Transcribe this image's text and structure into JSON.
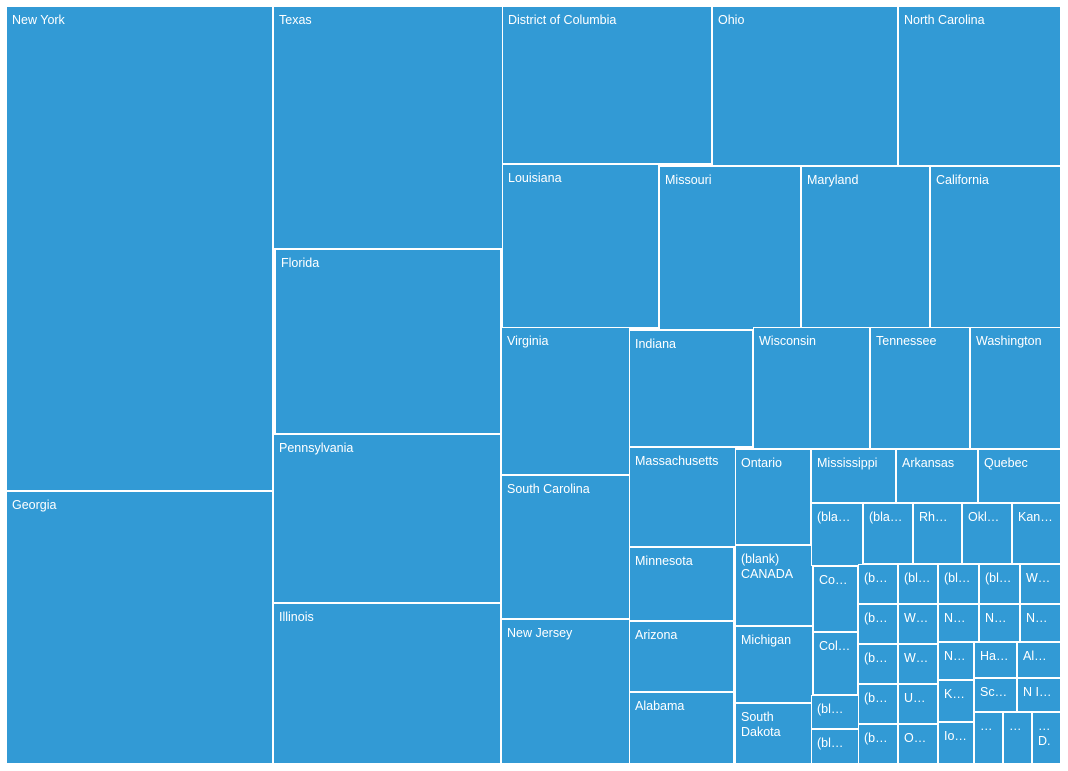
{
  "chart_data": {
    "type": "treemap",
    "color": "#329ad5",
    "label_color": "#ffffff",
    "items": [
      {
        "label": "New York",
        "approx_value": 128
      },
      {
        "label": "Georgia",
        "approx_value": 73
      },
      {
        "label": "Texas",
        "approx_value": 55
      },
      {
        "label": "Florida",
        "approx_value": 41
      },
      {
        "label": "Pennsylvania",
        "approx_value": 38
      },
      {
        "label": "Illinois",
        "approx_value": 36
      },
      {
        "label": "District of Columbia",
        "approx_value": 33
      },
      {
        "label": "Ohio",
        "approx_value": 29
      },
      {
        "label": "North Carolina",
        "approx_value": 25
      },
      {
        "label": "Louisiana",
        "approx_value": 25
      },
      {
        "label": "Missouri",
        "approx_value": 23
      },
      {
        "label": "Maryland",
        "approx_value": 21
      },
      {
        "label": "California",
        "approx_value": 21
      },
      {
        "label": "Virginia",
        "approx_value": 18
      },
      {
        "label": "South Carolina",
        "approx_value": 18
      },
      {
        "label": "New Jersey",
        "approx_value": 18
      },
      {
        "label": "Indiana",
        "approx_value": 14
      },
      {
        "label": "Wisconsin",
        "approx_value": 14
      },
      {
        "label": "Tennessee",
        "approx_value": 12
      },
      {
        "label": "Washington",
        "approx_value": 11
      },
      {
        "label": "Massachusetts",
        "approx_value": 10
      },
      {
        "label": "Minnesota",
        "approx_value": 7
      },
      {
        "label": "Arizona",
        "approx_value": 7
      },
      {
        "label": "Alabama",
        "approx_value": 7
      },
      {
        "label": "Ontario",
        "approx_value": 6
      },
      {
        "label": "(blank)\nCANADA",
        "approx_value": 6
      },
      {
        "label": "Michigan",
        "approx_value": 6
      },
      {
        "label": "South\nDakota",
        "approx_value": 4
      },
      {
        "label": "Mississippi",
        "approx_value": 4
      },
      {
        "label": "Arkansas",
        "approx_value": 4
      },
      {
        "label": "Quebec",
        "approx_value": 4
      },
      {
        "label": "(bla…",
        "approx_value": 3
      },
      {
        "label": "(bla…",
        "approx_value": 3
      },
      {
        "label": "Rh…",
        "approx_value": 3
      },
      {
        "label": "Okl…",
        "approx_value": 3
      },
      {
        "label": "Kan…",
        "approx_value": 3
      },
      {
        "label": "Co…",
        "approx_value": 2
      },
      {
        "label": "Col…",
        "approx_value": 2
      },
      {
        "label": "(bl…",
        "approx_value": 2
      },
      {
        "label": "(bl…",
        "approx_value": 1
      },
      {
        "label": "(b…",
        "approx_value": 2
      },
      {
        "label": "(b…",
        "approx_value": 2
      },
      {
        "label": "(b…",
        "approx_value": 2
      },
      {
        "label": "(b…",
        "approx_value": 2
      },
      {
        "label": "(b…",
        "approx_value": 2
      },
      {
        "label": "(bl…",
        "approx_value": 2
      },
      {
        "label": "W…",
        "approx_value": 2
      },
      {
        "label": "W…",
        "approx_value": 2
      },
      {
        "label": "U…",
        "approx_value": 2
      },
      {
        "label": "O…",
        "approx_value": 2
      },
      {
        "label": "(bl…",
        "approx_value": 2
      },
      {
        "label": "N…",
        "approx_value": 2
      },
      {
        "label": "N…",
        "approx_value": 2
      },
      {
        "label": "K…",
        "approx_value": 2
      },
      {
        "label": "Io…",
        "approx_value": 2
      },
      {
        "label": "(bl…",
        "approx_value": 1
      },
      {
        "label": "N…",
        "approx_value": 1
      },
      {
        "label": "Ha…",
        "approx_value": 1
      },
      {
        "label": "Sc…",
        "approx_value": 1
      },
      {
        "label": "…",
        "approx_value": 1
      },
      {
        "label": "…",
        "approx_value": 1
      },
      {
        "label": "W…",
        "approx_value": 1
      },
      {
        "label": "N…",
        "approx_value": 1
      },
      {
        "label": "Al…",
        "approx_value": 1
      },
      {
        "label": "N I…",
        "approx_value": 1
      },
      {
        "label": "…\nD.",
        "approx_value": 1
      }
    ]
  }
}
